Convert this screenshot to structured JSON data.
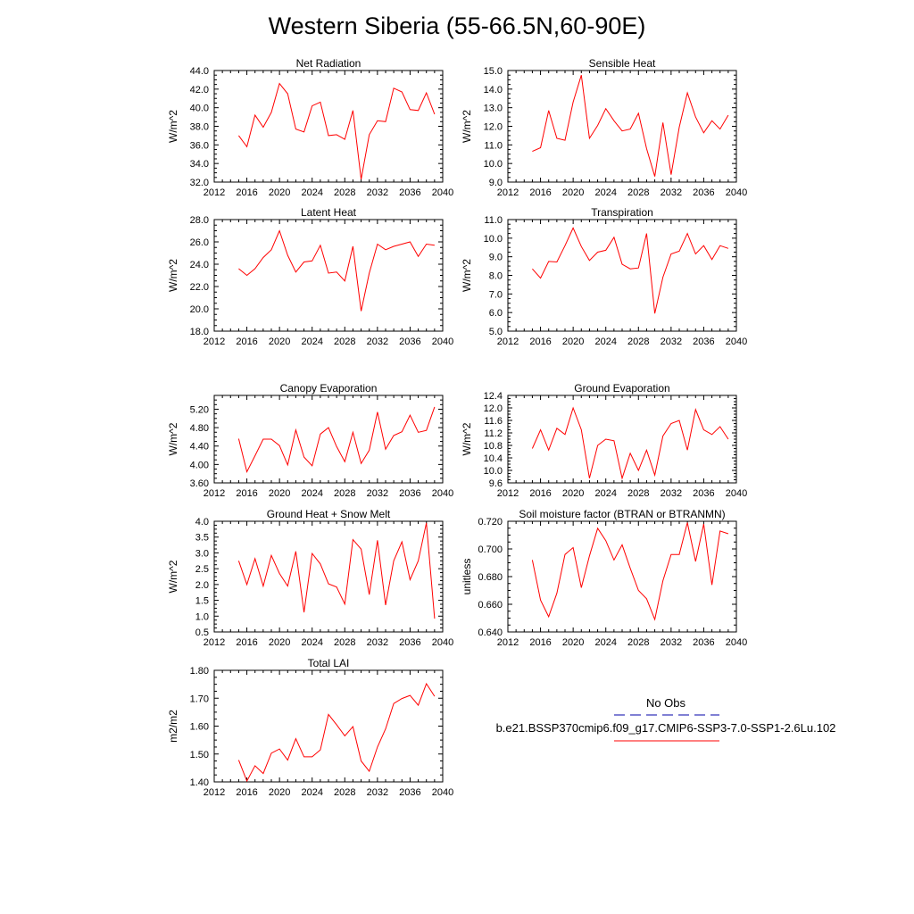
{
  "figure": {
    "title": "Western Siberia (55-66.5N,60-90E)",
    "line_color": "#ff0000",
    "obs_color": "#0000aa"
  },
  "legend": {
    "obs_label": "No Obs",
    "case_label": "b.e21.BSSP370cmip6.f09_g17.CMIP6-SSP3-7.0-SSP1-2.6Lu.102"
  },
  "chart_data": [
    {
      "type": "line",
      "title": "Net Radiation",
      "ylabel": "W/m^2",
      "xlim": [
        2012,
        2040
      ],
      "ylim": [
        32.0,
        44.0
      ],
      "xticks": [
        2012,
        2016,
        2020,
        2024,
        2028,
        2032,
        2036,
        2040
      ],
      "yticks": [
        "32.0",
        "34.0",
        "36.0",
        "38.0",
        "40.0",
        "42.0",
        "44.0"
      ],
      "x": [
        2015,
        2016,
        2017,
        2018,
        2019,
        2020,
        2021,
        2022,
        2023,
        2024,
        2025,
        2026,
        2027,
        2028,
        2029,
        2030,
        2031,
        2032,
        2033,
        2034,
        2035,
        2036,
        2037,
        2038,
        2039
      ],
      "values": [
        37.0,
        35.8,
        39.2,
        37.9,
        39.5,
        42.6,
        41.5,
        37.7,
        37.4,
        40.2,
        40.6,
        37.0,
        37.1,
        36.6,
        39.7,
        32.3,
        37.1,
        38.6,
        38.5,
        42.1,
        41.7,
        39.8,
        39.7,
        41.6,
        39.3
      ]
    },
    {
      "type": "line",
      "title": "Sensible Heat",
      "ylabel": "W/m^2",
      "xlim": [
        2012,
        2040
      ],
      "ylim": [
        9.0,
        15.0
      ],
      "xticks": [
        2012,
        2016,
        2020,
        2024,
        2028,
        2032,
        2036,
        2040
      ],
      "yticks": [
        "9.0",
        "10.0",
        "11.0",
        "12.0",
        "13.0",
        "14.0",
        "15.0"
      ],
      "x": [
        2015,
        2016,
        2017,
        2018,
        2019,
        2020,
        2021,
        2022,
        2023,
        2024,
        2025,
        2026,
        2027,
        2028,
        2029,
        2030,
        2031,
        2032,
        2033,
        2034,
        2035,
        2036,
        2037,
        2038,
        2039
      ],
      "values": [
        10.65,
        10.85,
        12.85,
        11.35,
        11.25,
        13.3,
        14.75,
        11.35,
        12.05,
        12.95,
        12.3,
        11.75,
        11.85,
        12.7,
        10.8,
        9.3,
        12.2,
        9.4,
        11.95,
        13.8,
        12.5,
        11.65,
        12.3,
        11.85,
        12.6
      ]
    },
    {
      "type": "line",
      "title": "Latent Heat",
      "ylabel": "W/m^2",
      "xlim": [
        2012,
        2040
      ],
      "ylim": [
        18.0,
        28.0
      ],
      "xticks": [
        2012,
        2016,
        2020,
        2024,
        2028,
        2032,
        2036,
        2040
      ],
      "yticks": [
        "18.0",
        "20.0",
        "22.0",
        "24.0",
        "26.0",
        "28.0"
      ],
      "x": [
        2015,
        2016,
        2017,
        2018,
        2019,
        2020,
        2021,
        2022,
        2023,
        2024,
        2025,
        2026,
        2027,
        2028,
        2029,
        2030,
        2031,
        2032,
        2033,
        2034,
        2035,
        2036,
        2037,
        2038,
        2039
      ],
      "values": [
        23.6,
        23.0,
        23.6,
        24.6,
        25.3,
        27.0,
        24.8,
        23.3,
        24.2,
        24.3,
        25.7,
        23.2,
        23.3,
        22.5,
        25.6,
        19.8,
        23.2,
        25.8,
        25.3,
        25.6,
        25.8,
        26.0,
        24.7,
        25.8,
        25.7
      ]
    },
    {
      "type": "line",
      "title": "Transpiration",
      "ylabel": "W/m^2",
      "xlim": [
        2012,
        2040
      ],
      "ylim": [
        5.0,
        11.0
      ],
      "xticks": [
        2012,
        2016,
        2020,
        2024,
        2028,
        2032,
        2036,
        2040
      ],
      "yticks": [
        "5.0",
        "6.0",
        "7.0",
        "8.0",
        "9.0",
        "10.0",
        "11.0"
      ],
      "x": [
        2015,
        2016,
        2017,
        2018,
        2019,
        2020,
        2021,
        2022,
        2023,
        2024,
        2025,
        2026,
        2027,
        2028,
        2029,
        2030,
        2031,
        2032,
        2033,
        2034,
        2035,
        2036,
        2037,
        2038,
        2039
      ],
      "values": [
        8.35,
        7.85,
        8.75,
        8.72,
        9.6,
        10.55,
        9.55,
        8.8,
        9.25,
        9.35,
        10.05,
        8.6,
        8.35,
        8.4,
        10.25,
        5.95,
        7.9,
        9.15,
        9.3,
        10.25,
        9.15,
        9.6,
        8.85,
        9.6,
        9.45
      ]
    },
    {
      "type": "line",
      "title": "Canopy Evaporation",
      "ylabel": "W/m^2",
      "xlim": [
        2012,
        2040
      ],
      "ylim": [
        3.6,
        5.5
      ],
      "xticks": [
        2012,
        2016,
        2020,
        2024,
        2028,
        2032,
        2036,
        2040
      ],
      "yticks": [
        "3.60",
        "4.00",
        "4.40",
        "4.80",
        "5.20"
      ],
      "x": [
        2015,
        2016,
        2017,
        2018,
        2019,
        2020,
        2021,
        2022,
        2023,
        2024,
        2025,
        2026,
        2027,
        2028,
        2029,
        2030,
        2031,
        2032,
        2033,
        2034,
        2035,
        2036,
        2037,
        2038,
        2039
      ],
      "values": [
        4.56,
        3.84,
        4.19,
        4.55,
        4.55,
        4.41,
        3.99,
        4.75,
        4.16,
        3.97,
        4.66,
        4.8,
        4.39,
        4.06,
        4.7,
        4.02,
        4.31,
        5.14,
        4.33,
        4.63,
        4.71,
        5.07,
        4.7,
        4.74,
        5.25
      ]
    },
    {
      "type": "line",
      "title": "Ground Evaporation",
      "ylabel": "W/m^2",
      "xlim": [
        2012,
        2040
      ],
      "ylim": [
        9.6,
        12.4
      ],
      "xticks": [
        2012,
        2016,
        2020,
        2024,
        2028,
        2032,
        2036,
        2040
      ],
      "yticks": [
        "9.6",
        "10.0",
        "10.4",
        "10.8",
        "11.2",
        "11.6",
        "12.0",
        "12.4"
      ],
      "x": [
        2015,
        2016,
        2017,
        2018,
        2019,
        2020,
        2021,
        2022,
        2023,
        2024,
        2025,
        2026,
        2027,
        2028,
        2029,
        2030,
        2031,
        2032,
        2033,
        2034,
        2035,
        2036,
        2037,
        2038,
        2039
      ],
      "values": [
        10.7,
        11.3,
        10.65,
        11.35,
        11.15,
        12.0,
        11.3,
        9.75,
        10.8,
        11.0,
        10.95,
        9.75,
        10.55,
        10.0,
        10.65,
        9.85,
        11.1,
        11.5,
        11.6,
        10.65,
        11.95,
        11.3,
        11.15,
        11.4,
        11.0
      ]
    },
    {
      "type": "line",
      "title": "Ground Heat + Snow Melt",
      "ylabel": "W/m^2",
      "xlim": [
        2012,
        2040
      ],
      "ylim": [
        0.5,
        4.0
      ],
      "xticks": [
        2012,
        2016,
        2020,
        2024,
        2028,
        2032,
        2036,
        2040
      ],
      "yticks": [
        "0.5",
        "1.0",
        "1.5",
        "2.0",
        "2.5",
        "3.0",
        "3.5",
        "4.0"
      ],
      "x": [
        2015,
        2016,
        2017,
        2018,
        2019,
        2020,
        2021,
        2022,
        2023,
        2024,
        2025,
        2026,
        2027,
        2028,
        2029,
        2030,
        2031,
        2032,
        2033,
        2034,
        2035,
        2036,
        2037,
        2038,
        2039
      ],
      "values": [
        2.75,
        2.0,
        2.82,
        1.95,
        2.92,
        2.35,
        1.95,
        3.05,
        1.12,
        2.98,
        2.65,
        2.02,
        1.92,
        1.38,
        3.42,
        3.12,
        1.68,
        3.4,
        1.35,
        2.75,
        3.35,
        2.15,
        2.75,
        3.95,
        0.92
      ]
    },
    {
      "type": "line",
      "title": "Soil moisture factor (BTRAN or BTRANMN)",
      "ylabel": "unitless",
      "xlim": [
        2012,
        2040
      ],
      "ylim": [
        0.64,
        0.72
      ],
      "xticks": [
        2012,
        2016,
        2020,
        2024,
        2028,
        2032,
        2036,
        2040
      ],
      "yticks": [
        "0.640",
        "0.660",
        "0.680",
        "0.700",
        "0.720"
      ],
      "x": [
        2015,
        2016,
        2017,
        2018,
        2019,
        2020,
        2021,
        2022,
        2023,
        2024,
        2025,
        2026,
        2027,
        2028,
        2029,
        2030,
        2031,
        2032,
        2033,
        2034,
        2035,
        2036,
        2037,
        2038,
        2039
      ],
      "values": [
        0.692,
        0.663,
        0.651,
        0.668,
        0.696,
        0.701,
        0.672,
        0.695,
        0.715,
        0.706,
        0.692,
        0.703,
        0.686,
        0.67,
        0.664,
        0.649,
        0.677,
        0.696,
        0.696,
        0.719,
        0.691,
        0.718,
        0.674,
        0.713,
        0.711
      ]
    },
    {
      "type": "line",
      "title": "Total LAI",
      "ylabel": "m2/m2",
      "xlim": [
        2012,
        2040
      ],
      "ylim": [
        1.4,
        1.8
      ],
      "xticks": [
        2012,
        2016,
        2020,
        2024,
        2028,
        2032,
        2036,
        2040
      ],
      "yticks": [
        "1.40",
        "1.50",
        "1.60",
        "1.70",
        "1.80"
      ],
      "x": [
        2015,
        2016,
        2017,
        2018,
        2019,
        2020,
        2021,
        2022,
        2023,
        2024,
        2025,
        2026,
        2027,
        2028,
        2029,
        2030,
        2031,
        2032,
        2033,
        2034,
        2035,
        2036,
        2037,
        2038,
        2039
      ],
      "values": [
        1.478,
        1.403,
        1.458,
        1.43,
        1.503,
        1.518,
        1.478,
        1.555,
        1.49,
        1.49,
        1.515,
        1.642,
        1.605,
        1.565,
        1.598,
        1.475,
        1.438,
        1.525,
        1.59,
        1.681,
        1.699,
        1.71,
        1.675,
        1.752,
        1.707
      ]
    }
  ]
}
